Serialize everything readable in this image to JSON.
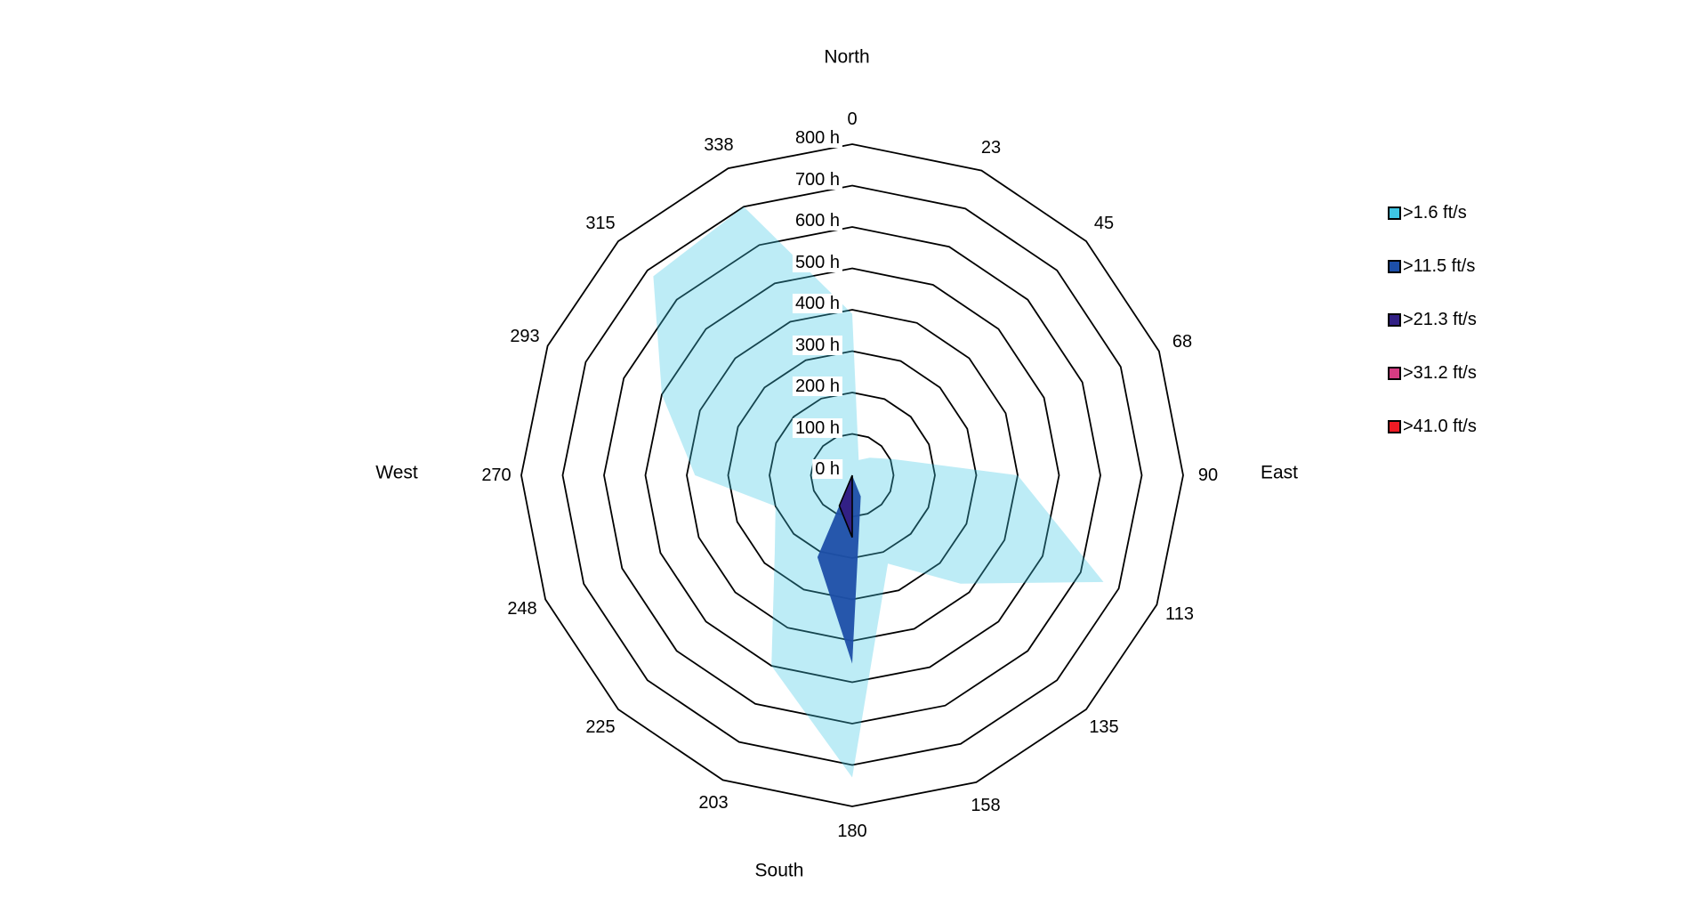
{
  "compass": {
    "north": "North",
    "east": "East",
    "south": "South",
    "west": "West"
  },
  "angle_labels": [
    "0",
    "23",
    "45",
    "68",
    "90",
    "113",
    "135",
    "158",
    "180",
    "203",
    "225",
    "248",
    "270",
    "293",
    "315",
    "338"
  ],
  "radial_ticks": [
    "0 h",
    "100 h",
    "200 h",
    "300 h",
    "400 h",
    "500 h",
    "600 h",
    "700 h",
    "800 h"
  ],
  "legend": {
    "items": [
      {
        "label": ">1.6 ft/s",
        "color": "#3EC6E4"
      },
      {
        "label": ">11.5 ft/s",
        "color": "#1D4FA8"
      },
      {
        "label": ">21.3 ft/s",
        "color": "#322085"
      },
      {
        "label": ">31.2 ft/s",
        "color": "#D63C82"
      },
      {
        "label": ">41.0 ft/s",
        "color": "#EE1B24"
      }
    ]
  },
  "chart_data": {
    "type": "windrose-polar-area",
    "title": "",
    "angle_unit": "degrees clockwise from North",
    "radial_unit": "hours",
    "radial_range": [
      0,
      800
    ],
    "radial_tick_step": 100,
    "grid": "16-sided polygonal rings every 100 h, no radial spokes",
    "legend_position": "right",
    "directions_deg": [
      0,
      23,
      45,
      68,
      90,
      113,
      135,
      158,
      180,
      203,
      225,
      248,
      270,
      293,
      315,
      338
    ],
    "series": [
      {
        "name": ">1.6 ft/s",
        "color": "#3EC6E4",
        "values_h": [
          390,
          40,
          60,
          105,
          400,
          660,
          370,
          230,
          730,
          500,
          265,
          200,
          380,
          500,
          680,
          700
        ]
      },
      {
        "name": ">11.5 ft/s",
        "color": "#1D4FA8",
        "values_h": [
          0,
          0,
          0,
          0,
          0,
          0,
          0,
          55,
          455,
          215,
          0,
          0,
          0,
          0,
          0,
          0
        ]
      },
      {
        "name": ">21.3 ft/s",
        "color": "#322085",
        "values_h": [
          0,
          0,
          0,
          0,
          0,
          0,
          0,
          0,
          150,
          80,
          0,
          0,
          0,
          0,
          0,
          0
        ]
      },
      {
        "name": ">31.2 ft/s",
        "color": "#D63C82",
        "values_h": [
          0,
          0,
          0,
          0,
          0,
          0,
          0,
          0,
          35,
          0,
          0,
          0,
          0,
          0,
          0,
          0
        ]
      },
      {
        "name": ">41.0 ft/s",
        "color": "#EE1B24",
        "values_h": [
          0,
          0,
          0,
          0,
          0,
          0,
          0,
          0,
          0,
          0,
          0,
          0,
          0,
          0,
          0,
          0
        ]
      }
    ]
  }
}
